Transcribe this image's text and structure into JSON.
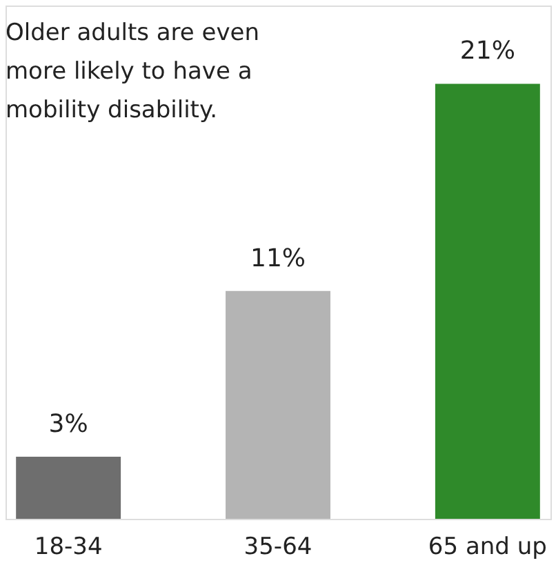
{
  "chart_data": {
    "type": "bar",
    "title": "Older adults are even more likely to have a mobility disability.",
    "categories": [
      "18-34",
      "35-64",
      "65 and up"
    ],
    "values": [
      3,
      11,
      21
    ],
    "colors": [
      "#6e6e6e",
      "#b4b4b4",
      "#2f8a2a"
    ],
    "value_labels": [
      "3%",
      "11%",
      "21%"
    ],
    "grid": false
  }
}
